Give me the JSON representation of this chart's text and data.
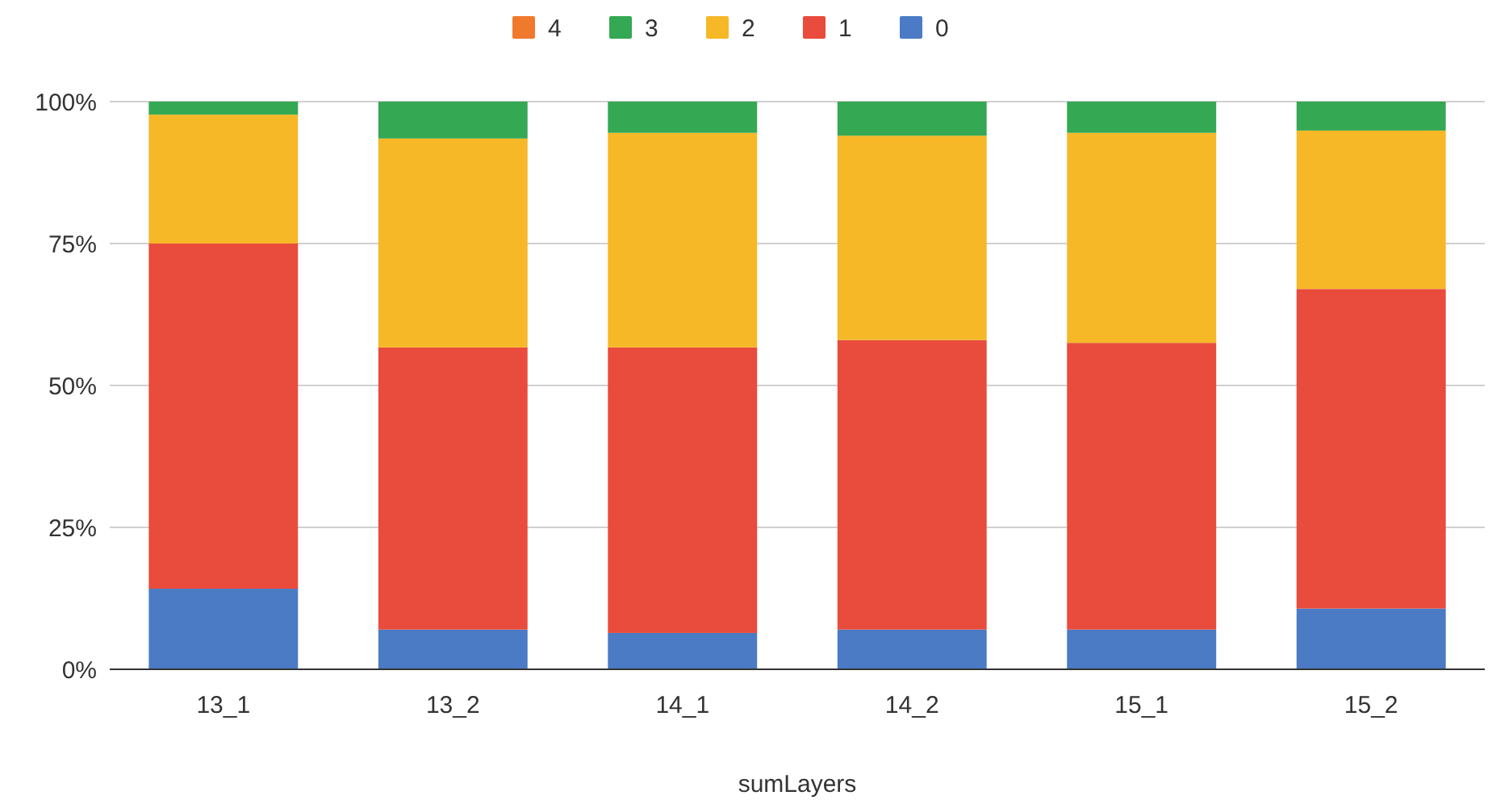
{
  "chart_data": {
    "type": "bar",
    "stacked": true,
    "xlabel": "sumLayers",
    "categories": [
      "13_1",
      "13_2",
      "14_1",
      "14_2",
      "15_1",
      "15_2"
    ],
    "series": [
      {
        "name": "0",
        "color": "#4a7bc4",
        "values": [
          14.2,
          7.0,
          6.4,
          7.0,
          7.0,
          10.7
        ]
      },
      {
        "name": "1",
        "color": "#e94b3c",
        "values": [
          60.8,
          49.7,
          50.3,
          51.0,
          50.5,
          56.3
        ]
      },
      {
        "name": "2",
        "color": "#f6b827",
        "values": [
          22.7,
          36.8,
          37.8,
          36.0,
          37.0,
          27.9
        ]
      },
      {
        "name": "3",
        "color": "#34a853",
        "values": [
          2.3,
          6.5,
          5.5,
          6.0,
          5.5,
          5.1
        ]
      },
      {
        "name": "4",
        "color": "#f07a2c",
        "values": [
          0,
          0,
          0,
          0,
          0,
          0
        ]
      }
    ],
    "ylim": [
      0,
      100
    ],
    "yticks": [
      {
        "value": 0,
        "label": "0%"
      },
      {
        "value": 25,
        "label": "25%"
      },
      {
        "value": 50,
        "label": "50%"
      },
      {
        "value": 75,
        "label": "75%"
      },
      {
        "value": 100,
        "label": "100%"
      }
    ],
    "grid": "y",
    "legend": "top"
  }
}
